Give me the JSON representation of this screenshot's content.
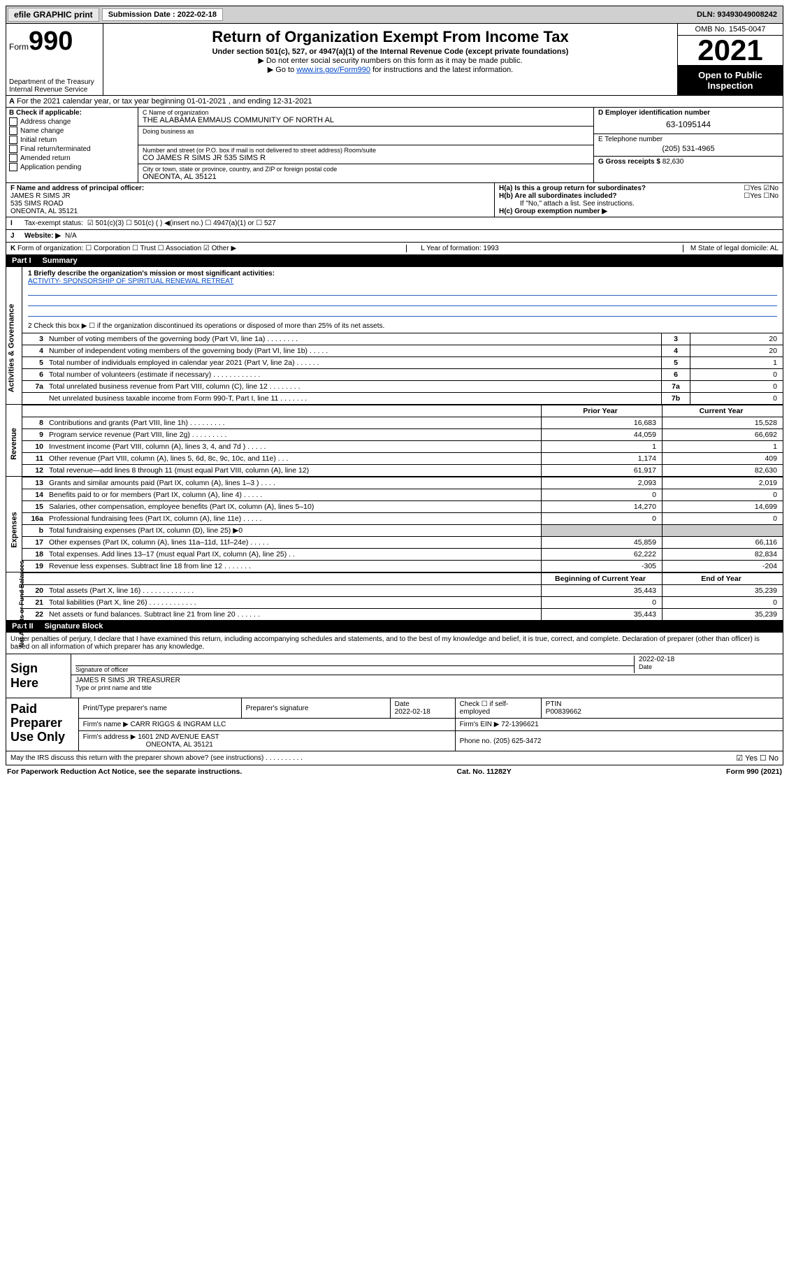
{
  "topbar": {
    "efile": "efile GRAPHIC print",
    "sub_label": "Submission Date : 2022-02-18",
    "dln": "DLN: 93493049008242"
  },
  "header": {
    "form_word": "Form",
    "form_num": "990",
    "title": "Return of Organization Exempt From Income Tax",
    "sub1": "Under section 501(c), 527, or 4947(a)(1) of the Internal Revenue Code (except private foundations)",
    "note1": "▶ Do not enter social security numbers on this form as it may be made public.",
    "note2_pre": "▶ Go to ",
    "note2_link": "www.irs.gov/Form990",
    "note2_post": " for instructions and the latest information.",
    "dept": "Department of the Treasury\nInternal Revenue Service",
    "omb": "OMB No. 1545-0047",
    "year": "2021",
    "open": "Open to Public Inspection"
  },
  "line_a": "For the 2021 calendar year, or tax year beginning 01-01-2021    , and ending 12-31-2021",
  "box_b": {
    "hdr": "B Check if applicable:",
    "items": [
      "Address change",
      "Name change",
      "Initial return",
      "Final return/terminated",
      "Amended return",
      "Application pending"
    ]
  },
  "box_c": {
    "name_lbl": "C Name of organization",
    "name": "THE ALABAMA EMMAUS COMMUNITY OF NORTH AL",
    "dba_lbl": "Doing business as",
    "addr_lbl": "Number and street (or P.O. box if mail is not delivered to street address)       Room/suite",
    "addr": "CO JAMES R SIMS JR 535 SIMS R",
    "city_lbl": "City or town, state or province, country, and ZIP or foreign postal code",
    "city": "ONEONTA, AL  35121"
  },
  "box_de": {
    "d_lbl": "D Employer identification number",
    "d_val": "63-1095144",
    "e_lbl": "E Telephone number",
    "e_val": "(205) 531-4965",
    "g_lbl": "G Gross receipts $",
    "g_val": "82,630"
  },
  "row_f": {
    "f_lbl": "F Name and address of principal officer:",
    "f_val": "JAMES R SIMS JR\n535 SIMS ROAD\nONEONTA, AL  35121",
    "ha": "H(a)  Is this a group return for subordinates?",
    "ha_ans": "☐Yes ☑No",
    "hb": "H(b)  Are all subordinates included?",
    "hb_ans": "☐Yes ☐No",
    "hb_note": "If \"No,\" attach a list. See instructions.",
    "hc": "H(c)  Group exemption number ▶"
  },
  "row_i": {
    "lbl": "I",
    "txt": "Tax-exempt status:",
    "opts": "☑ 501(c)(3)   ☐ 501(c) (  ) ◀(insert no.)   ☐ 4947(a)(1) or  ☐ 527"
  },
  "row_j": {
    "lbl": "J",
    "txt": "Website: ▶",
    "val": "N/A"
  },
  "row_k": {
    "lbl": "K",
    "txt": "Form of organization:  ☐ Corporation  ☐ Trust  ☐ Association  ☑ Other ▶",
    "l": "L Year of formation: 1993",
    "m": "M State of legal domicile: AL"
  },
  "part1": {
    "hdr_part": "Part I",
    "hdr_title": "Summary",
    "mission_lbl": "1  Briefly describe the organization's mission or most significant activities:",
    "mission": "ACTIVITY- SPONSORSHIP OF SPIRITUAL RENEWAL RETREAT",
    "line2": "2   Check this box ▶ ☐  if the organization discontinued its operations or disposed of more than 25% of its net assets."
  },
  "vtabs": {
    "gov": "Activities & Governance",
    "rev": "Revenue",
    "exp": "Expenses",
    "net": "Net Assets or Fund Balances"
  },
  "gov_rows": [
    {
      "n": "3",
      "d": "Number of voting members of the governing body (Part VI, line 1a)   .   .   .   .   .   .   .   .",
      "box": "3",
      "v": "20"
    },
    {
      "n": "4",
      "d": "Number of independent voting members of the governing body (Part VI, line 1b)   .   .   .   .   .",
      "box": "4",
      "v": "20"
    },
    {
      "n": "5",
      "d": "Total number of individuals employed in calendar year 2021 (Part V, line 2a)   .   .   .   .   .   .",
      "box": "5",
      "v": "1"
    },
    {
      "n": "6",
      "d": "Total number of volunteers (estimate if necessary)   .   .   .   .   .   .   .   .   .   .   .   .",
      "box": "6",
      "v": "0"
    },
    {
      "n": "7a",
      "d": "Total unrelated business revenue from Part VIII, column (C), line 12   .   .   .   .   .   .   .   .",
      "box": "7a",
      "v": "0"
    },
    {
      "n": "",
      "d": "Net unrelated business taxable income from Form 990-T, Part I, line 11   .   .   .   .   .   .   .",
      "box": "7b",
      "v": "0"
    }
  ],
  "col_hdr": {
    "py": "Prior Year",
    "cy": "Current Year"
  },
  "rev_rows": [
    {
      "n": "8",
      "d": "Contributions and grants (Part VIII, line 1h)   .   .   .   .   .   .   .   .   .",
      "py": "16,683",
      "cy": "15,528"
    },
    {
      "n": "9",
      "d": "Program service revenue (Part VIII, line 2g)   .   .   .   .   .   .   .   .   .",
      "py": "44,059",
      "cy": "66,692"
    },
    {
      "n": "10",
      "d": "Investment income (Part VIII, column (A), lines 3, 4, and 7d )   .   .   .   .   .",
      "py": "1",
      "cy": "1"
    },
    {
      "n": "11",
      "d": "Other revenue (Part VIII, column (A), lines 5, 6d, 8c, 9c, 10c, and 11e)   .   .   .",
      "py": "1,174",
      "cy": "409"
    },
    {
      "n": "12",
      "d": "Total revenue—add lines 8 through 11 (must equal Part VIII, column (A), line 12)",
      "py": "61,917",
      "cy": "82,630"
    }
  ],
  "exp_rows": [
    {
      "n": "13",
      "d": "Grants and similar amounts paid (Part IX, column (A), lines 1–3 )   .   .   .   .",
      "py": "2,093",
      "cy": "2,019"
    },
    {
      "n": "14",
      "d": "Benefits paid to or for members (Part IX, column (A), line 4)   .   .   .   .   .",
      "py": "0",
      "cy": "0"
    },
    {
      "n": "15",
      "d": "Salaries, other compensation, employee benefits (Part IX, column (A), lines 5–10)",
      "py": "14,270",
      "cy": "14,699"
    },
    {
      "n": "16a",
      "d": "Professional fundraising fees (Part IX, column (A), line 11e)   .   .   .   .   .",
      "py": "0",
      "cy": "0"
    },
    {
      "n": "b",
      "d": "Total fundraising expenses (Part IX, column (D), line 25) ▶0",
      "py": "",
      "cy": "",
      "shade": true
    },
    {
      "n": "17",
      "d": "Other expenses (Part IX, column (A), lines 11a–11d, 11f–24e)   .   .   .   .   .",
      "py": "45,859",
      "cy": "66,116"
    },
    {
      "n": "18",
      "d": "Total expenses. Add lines 13–17 (must equal Part IX, column (A), line 25)   .   .",
      "py": "62,222",
      "cy": "82,834"
    },
    {
      "n": "19",
      "d": "Revenue less expenses. Subtract line 18 from line 12   .   .   .   .   .   .   .",
      "py": "-305",
      "cy": "-204"
    }
  ],
  "net_hdr": {
    "py": "Beginning of Current Year",
    "cy": "End of Year"
  },
  "net_rows": [
    {
      "n": "20",
      "d": "Total assets (Part X, line 16)   .   .   .   .   .   .   .   .   .   .   .   .   .",
      "py": "35,443",
      "cy": "35,239"
    },
    {
      "n": "21",
      "d": "Total liabilities (Part X, line 26)   .   .   .   .   .   .   .   .   .   .   .   .",
      "py": "0",
      "cy": "0"
    },
    {
      "n": "22",
      "d": "Net assets or fund balances. Subtract line 21 from line 20   .   .   .   .   .   .",
      "py": "35,443",
      "cy": "35,239"
    }
  ],
  "part2": {
    "hdr_part": "Part II",
    "hdr_title": "Signature Block",
    "penalty": "Under penalties of perjury, I declare that I have examined this return, including accompanying schedules and statements, and to the best of my knowledge and belief, it is true, correct, and complete. Declaration of preparer (other than officer) is based on all information of which preparer has any knowledge."
  },
  "sign": {
    "lab": "Sign Here",
    "sig_lbl": "Signature of officer",
    "date": "2022-02-18",
    "date_lbl": "Date",
    "name": "JAMES R SIMS JR  TREASURER",
    "name_lbl": "Type or print name and title"
  },
  "prep": {
    "lab": "Paid Preparer Use Only",
    "h1": "Print/Type preparer's name",
    "h2": "Preparer's signature",
    "h3": "Date",
    "h3v": "2022-02-18",
    "h4": "Check ☐ if self-employed",
    "h5": "PTIN",
    "h5v": "P00839662",
    "firm_lbl": "Firm's name      ▶",
    "firm": "CARR RIGGS & INGRAM LLC",
    "ein_lbl": "Firm's EIN ▶",
    "ein": "72-1396621",
    "addr_lbl": "Firm's address ▶",
    "addr": "1601 2ND AVENUE EAST",
    "addr2": "ONEONTA, AL  35121",
    "phone_lbl": "Phone no.",
    "phone": "(205) 625-3472"
  },
  "footer": {
    "q": "May the IRS discuss this return with the preparer shown above? (see instructions)   .   .   .   .   .   .   .   .   .   .",
    "ans": "☑ Yes  ☐ No",
    "pra": "For Paperwork Reduction Act Notice, see the separate instructions.",
    "cat": "Cat. No. 11282Y",
    "form": "Form 990 (2021)"
  }
}
